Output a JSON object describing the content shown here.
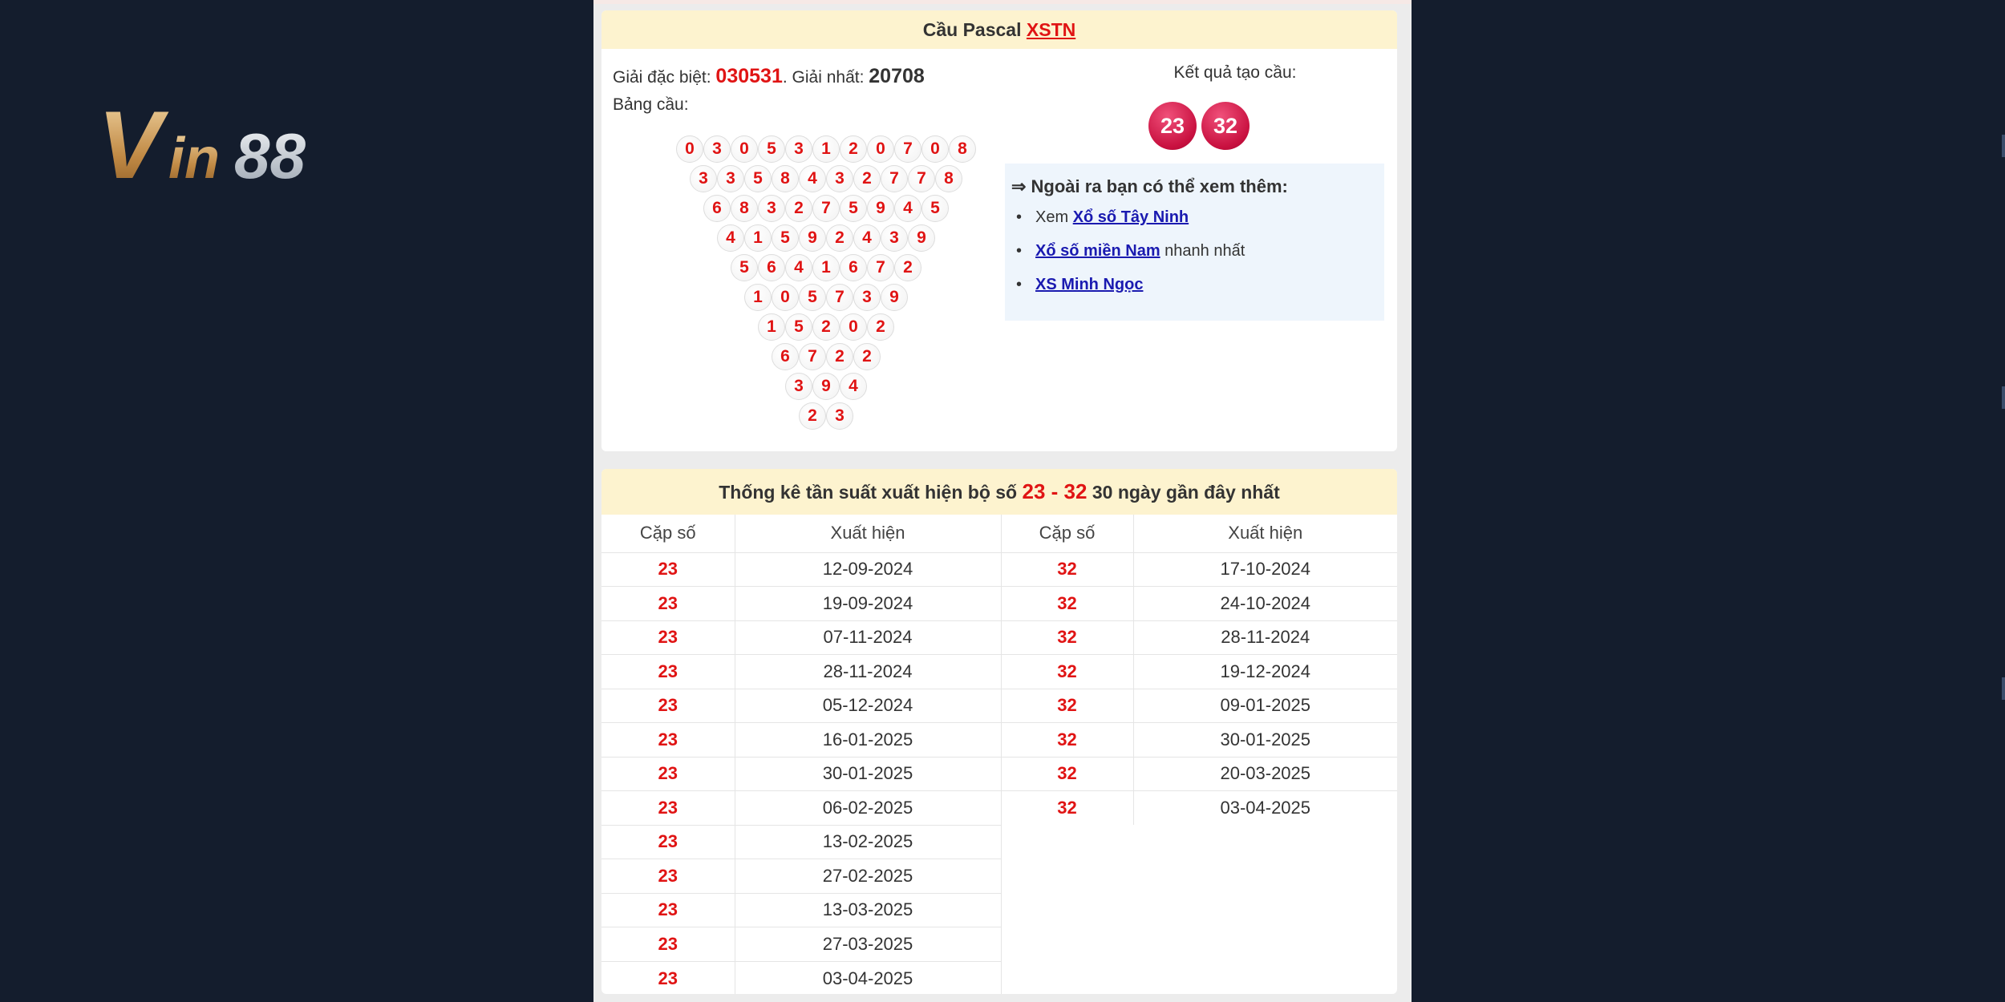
{
  "brand": {
    "logo_text": "Vin88"
  },
  "pascal": {
    "title": "Cầu Pascal",
    "title_link": "XSTN",
    "special_label": "Giải đặc biệt:",
    "special_value": "030531",
    "first_label": ". Giải nhất:",
    "first_value": "20708",
    "table_label": "Bảng cầu:",
    "rows": [
      "03053120708",
      "3358432778",
      "683275945",
      "41592439",
      "5641672",
      "105739",
      "15202",
      "6722",
      "394",
      "23"
    ],
    "result_label": "Kết quả tạo cầu:",
    "results": [
      "23",
      "32"
    ]
  },
  "more": {
    "heading": "⇒ Ngoài ra bạn có thể xem thêm:",
    "items": [
      {
        "prefix": "Xem ",
        "link": "Xổ số Tây Ninh",
        "suffix": ""
      },
      {
        "prefix": "",
        "link": "Xổ số miền Nam",
        "suffix": " nhanh nhất"
      },
      {
        "prefix": "",
        "link": "XS Minh Ngọc",
        "suffix": ""
      }
    ]
  },
  "stats": {
    "title_pre": "Thống kê tần suất xuất hiện bộ số ",
    "title_pair": "23 - 32",
    "title_post": " 30 ngày gần đây nhất",
    "headers": [
      "Cặp số",
      "Xuất hiện",
      "Cặp số",
      "Xuất hiện"
    ],
    "left": {
      "pair": "23",
      "dates": [
        "12-09-2024",
        "19-09-2024",
        "07-11-2024",
        "28-11-2024",
        "05-12-2024",
        "16-01-2025",
        "30-01-2025",
        "06-02-2025",
        "13-02-2025",
        "27-02-2025",
        "13-03-2025",
        "27-03-2025",
        "03-04-2025"
      ]
    },
    "right": {
      "pair": "32",
      "dates": [
        "17-10-2024",
        "24-10-2024",
        "28-11-2024",
        "19-12-2024",
        "09-01-2025",
        "30-01-2025",
        "20-03-2025",
        "03-04-2025"
      ]
    }
  },
  "colors": {
    "accent_red": "#e01414",
    "header_bg": "#fdf3cf",
    "background": "#141d2d",
    "link_blue": "#1a1ab0"
  }
}
